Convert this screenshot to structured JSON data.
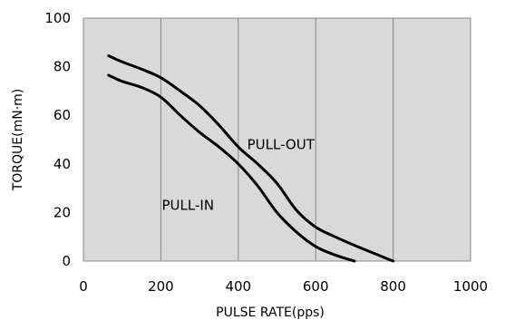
{
  "chart_data": {
    "type": "line",
    "title": "",
    "xlabel": "PULSE RATE(pps)",
    "ylabel": "TORQUE(mN·m)",
    "xlim": [
      0,
      1000
    ],
    "ylim": [
      0,
      100
    ],
    "x_ticks": [
      "0",
      "200",
      "400",
      "600",
      "800",
      "1000"
    ],
    "y_ticks": [
      "0",
      "20",
      "40",
      "60",
      "80",
      "100"
    ],
    "x_tick_values": [
      0,
      200,
      400,
      600,
      800,
      1000
    ],
    "y_tick_values": [
      0,
      20,
      40,
      60,
      80,
      100
    ],
    "grid": "vertical",
    "legend": "none",
    "plot_background": "#d9d9d9",
    "line_color": "#000000",
    "series": [
      {
        "points": [
          [
            65,
            84.5
          ],
          [
            100,
            82
          ],
          [
            150,
            79
          ],
          [
            200,
            75.5
          ],
          [
            250,
            70
          ],
          [
            300,
            64
          ],
          [
            350,
            56
          ],
          [
            400,
            47
          ],
          [
            450,
            40
          ],
          [
            500,
            32
          ],
          [
            550,
            21
          ],
          [
            600,
            14
          ],
          [
            650,
            10
          ],
          [
            700,
            6.5
          ],
          [
            800,
            0
          ]
        ]
      },
      {
        "points": [
          [
            65,
            76.5
          ],
          [
            100,
            74
          ],
          [
            150,
            71.5
          ],
          [
            200,
            67.5
          ],
          [
            250,
            60
          ],
          [
            300,
            53
          ],
          [
            350,
            47
          ],
          [
            400,
            40
          ],
          [
            450,
            31
          ],
          [
            500,
            20
          ],
          [
            550,
            12
          ],
          [
            600,
            6
          ],
          [
            650,
            2.5
          ],
          [
            700,
            0
          ]
        ]
      }
    ],
    "annotations": [
      {
        "text": "PULL-OUT",
        "x": 510,
        "y": 48
      },
      {
        "text": "PULL-IN",
        "x": 270,
        "y": 23
      }
    ]
  }
}
